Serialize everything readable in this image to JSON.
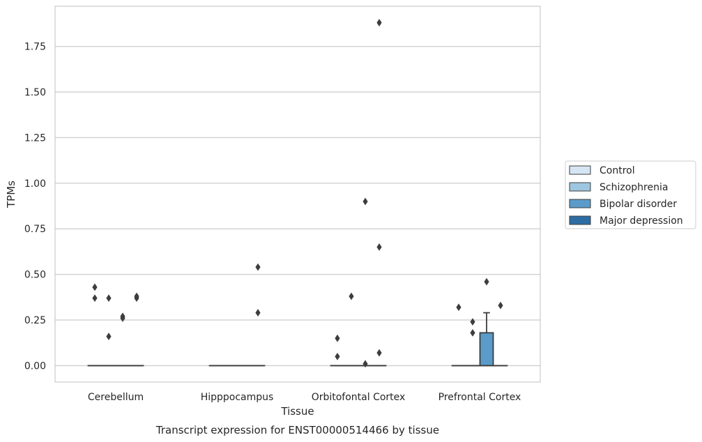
{
  "chart_data": {
    "type": "box",
    "title": "",
    "caption": "Transcript expression for ENST00000514466 by tissue",
    "xlabel": "Tissue",
    "ylabel": "TPMs",
    "ylim": [
      -0.09,
      1.97
    ],
    "yticks": [
      0.0,
      0.25,
      0.5,
      0.75,
      1.0,
      1.25,
      1.5,
      1.75
    ],
    "ytick_labels": [
      "0.00",
      "0.25",
      "0.50",
      "0.75",
      "1.00",
      "1.25",
      "1.50",
      "1.75"
    ],
    "grid": "horizontal",
    "legend_position": "right",
    "categories": [
      "Cerebellum",
      "Hipppocampus",
      "Orbitofontal Cortex",
      "Prefrontal Cortex"
    ],
    "series": [
      {
        "name": "Control",
        "color": "#d6e5f3",
        "boxes": [
          {
            "q1": 0,
            "median": 0,
            "q3": 0,
            "whisker_low": 0,
            "whisker_high": 0,
            "outliers": [
              0.43,
              0.37
            ]
          },
          {
            "q1": 0,
            "median": 0,
            "q3": 0,
            "whisker_low": 0,
            "whisker_high": 0,
            "outliers": []
          },
          {
            "q1": 0,
            "median": 0,
            "q3": 0,
            "whisker_low": 0,
            "whisker_high": 0,
            "outliers": [
              0.15,
              0.05
            ]
          },
          {
            "q1": 0,
            "median": 0,
            "q3": 0,
            "whisker_low": 0,
            "whisker_high": 0,
            "outliers": [
              0.32
            ]
          }
        ]
      },
      {
        "name": "Schizophrenia",
        "color": "#9dc6e0",
        "boxes": [
          {
            "q1": 0,
            "median": 0,
            "q3": 0,
            "whisker_low": 0,
            "whisker_high": 0,
            "outliers": [
              0.37,
              0.16
            ]
          },
          {
            "q1": 0,
            "median": 0,
            "q3": 0,
            "whisker_low": 0,
            "whisker_high": 0,
            "outliers": []
          },
          {
            "q1": 0,
            "median": 0,
            "q3": 0,
            "whisker_low": 0,
            "whisker_high": 0,
            "outliers": [
              0.38
            ]
          },
          {
            "q1": 0,
            "median": 0,
            "q3": 0,
            "whisker_low": 0,
            "whisker_high": 0,
            "outliers": [
              0.24,
              0.18
            ]
          }
        ]
      },
      {
        "name": "Bipolar disorder",
        "color": "#5b9bc9",
        "boxes": [
          {
            "q1": 0,
            "median": 0,
            "q3": 0,
            "whisker_low": 0,
            "whisker_high": 0,
            "outliers": [
              0.27,
              0.26
            ]
          },
          {
            "q1": 0,
            "median": 0,
            "q3": 0,
            "whisker_low": 0,
            "whisker_high": 0,
            "outliers": []
          },
          {
            "q1": 0,
            "median": 0,
            "q3": 0,
            "whisker_low": 0,
            "whisker_high": 0,
            "outliers": [
              0.9,
              0.01
            ]
          },
          {
            "q1": 0,
            "median": 0,
            "q3": 0.18,
            "whisker_low": 0,
            "whisker_high": 0.29,
            "outliers": [
              0.46
            ]
          }
        ]
      },
      {
        "name": "Major depression",
        "color": "#2e6da4",
        "boxes": [
          {
            "q1": 0,
            "median": 0,
            "q3": 0,
            "whisker_low": 0,
            "whisker_high": 0,
            "outliers": [
              0.38,
              0.37
            ]
          },
          {
            "q1": 0,
            "median": 0,
            "q3": 0,
            "whisker_low": 0,
            "whisker_high": 0,
            "outliers": [
              0.54,
              0.29
            ]
          },
          {
            "q1": 0,
            "median": 0,
            "q3": 0,
            "whisker_low": 0,
            "whisker_high": 0,
            "outliers": [
              1.88,
              0.65,
              0.07
            ]
          },
          {
            "q1": 0,
            "median": 0,
            "q3": 0,
            "whisker_low": 0,
            "whisker_high": 0,
            "outliers": [
              0.33
            ]
          }
        ]
      }
    ]
  }
}
